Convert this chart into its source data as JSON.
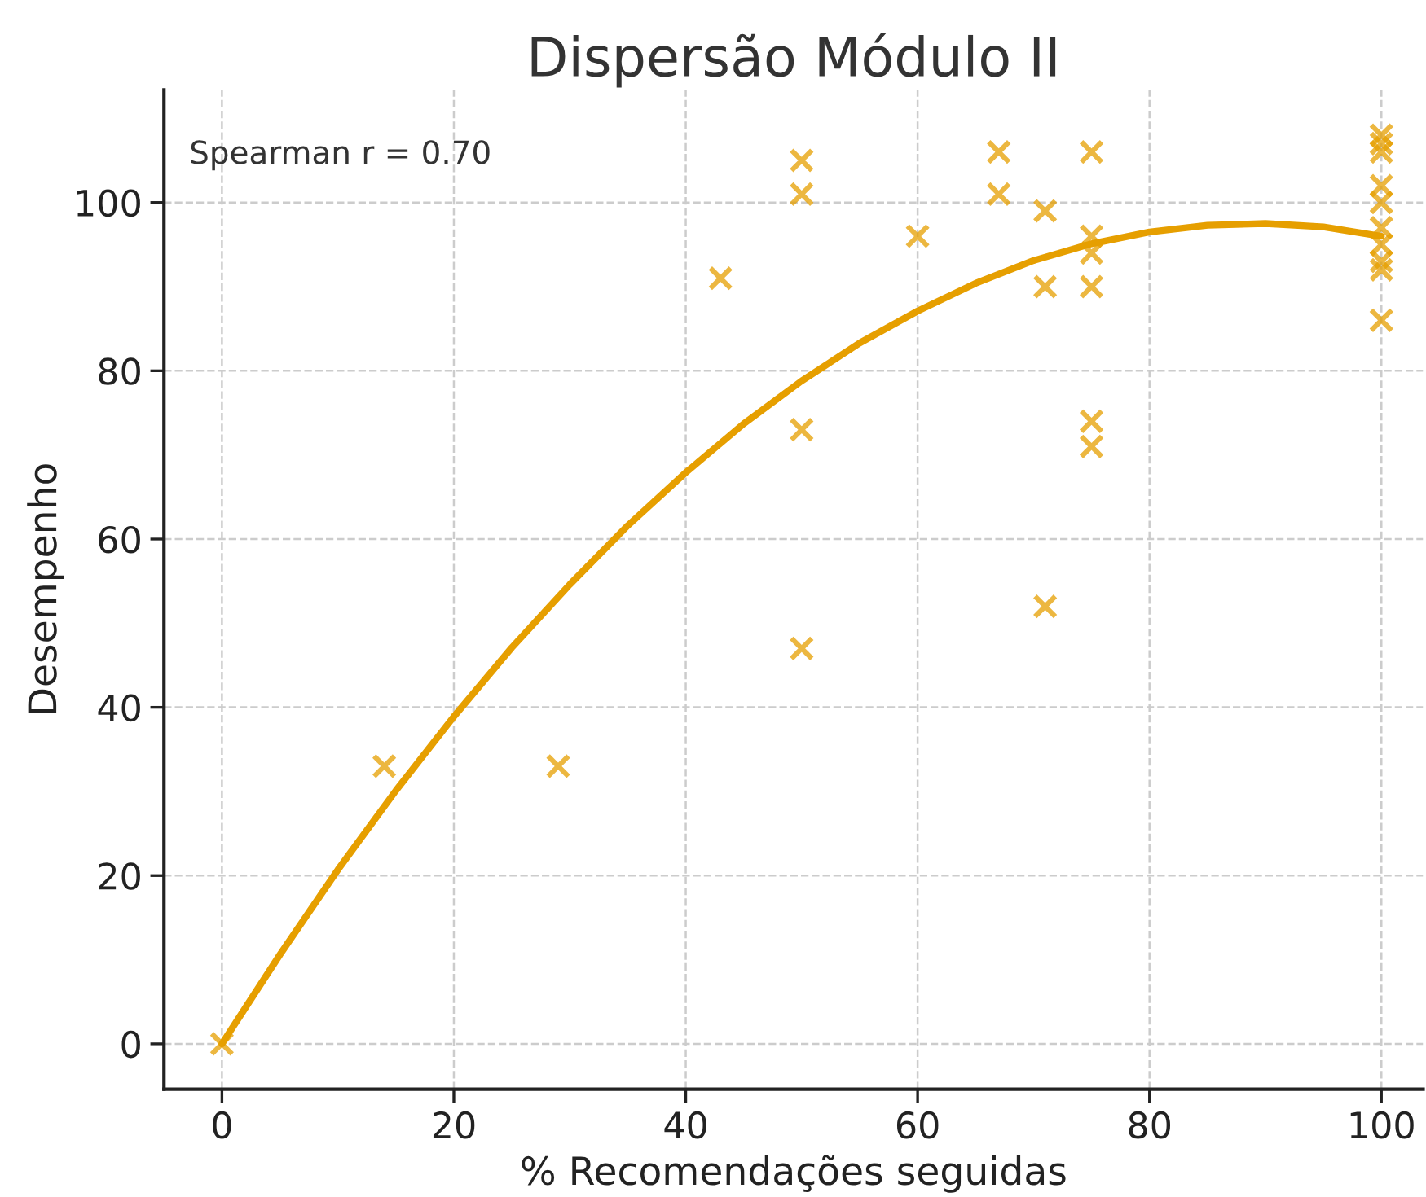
{
  "chart_data": {
    "type": "scatter",
    "title": "Dispersão Módulo II",
    "xlabel": "% Recomendações seguidas",
    "ylabel": "Desempenho",
    "annotations": [
      "Spearman r = 0.70"
    ],
    "series": [
      {
        "color": "#e69f00",
        "marker": "cross",
        "x": [
          0,
          14,
          29,
          43,
          50,
          50,
          50,
          50,
          60,
          67,
          67,
          71,
          71,
          71,
          75,
          75,
          75,
          75,
          75,
          75,
          100,
          100,
          100,
          100,
          100,
          100,
          100,
          100,
          100,
          100
        ],
        "values": [
          0,
          33,
          33,
          91,
          105,
          101,
          73,
          47,
          96,
          106,
          101,
          99,
          90,
          52,
          106,
          96,
          94,
          90,
          74,
          71,
          108,
          107,
          106,
          102,
          100,
          97,
          95,
          93,
          92,
          86
        ]
      },
      {
        "type": "line",
        "color": "#e69f00",
        "marker": "none",
        "line_style": "solid",
        "x": [
          0,
          5,
          10,
          15,
          20,
          25,
          30,
          35,
          40,
          45,
          50,
          55,
          60,
          65,
          70,
          75,
          80,
          85,
          90,
          95,
          100
        ],
        "values": [
          0,
          10.6,
          20.7,
          30.1,
          38.9,
          47.1,
          54.6,
          61.6,
          67.9,
          73.7,
          78.8,
          83.3,
          87.1,
          90.4,
          93.1,
          95.1,
          96.5,
          97.3,
          97.5,
          97.1,
          96.0
        ]
      }
    ],
    "xlim": [
      -5,
      103.6
    ],
    "ylim": [
      -5.4,
      113.4
    ],
    "xticks": [
      0,
      20,
      40,
      60,
      80,
      100
    ],
    "yticks": [
      0,
      20,
      40,
      60,
      80,
      100
    ],
    "grid": true,
    "legend": false
  }
}
